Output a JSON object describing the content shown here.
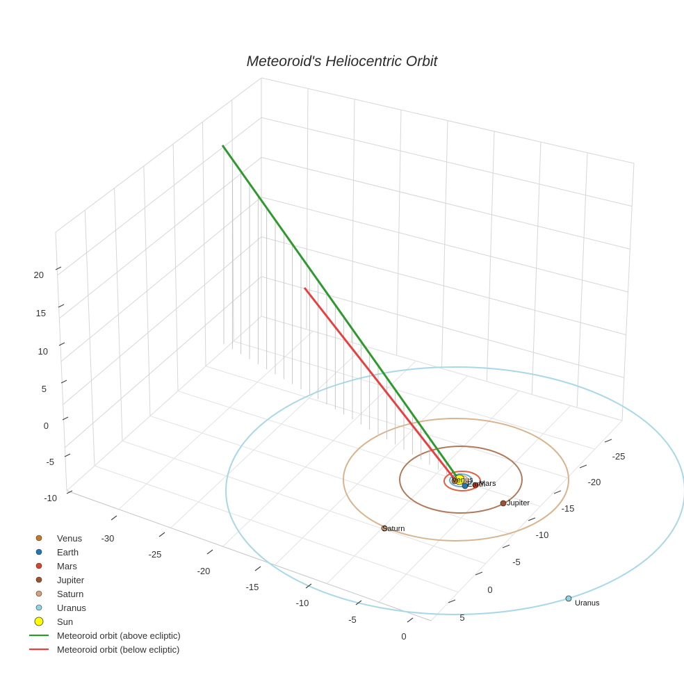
{
  "chart_data": {
    "type": "scatter3d",
    "title": "Meteoroid's Heliocentric Orbit",
    "axes": {
      "x": {
        "ticks": [
          -30,
          -25,
          -20,
          -15,
          -10,
          -5,
          0
        ]
      },
      "y": {
        "ticks": [
          -25,
          -20,
          -15,
          -10,
          -5,
          0,
          5
        ]
      },
      "z": {
        "ticks": [
          -10,
          -5,
          0,
          5,
          10,
          15,
          20
        ]
      }
    },
    "planets": [
      {
        "name": "Venus",
        "color": "#c0782a",
        "label": "Venus"
      },
      {
        "name": "Earth",
        "color": "#1f77b4",
        "label": "Earth"
      },
      {
        "name": "Mars",
        "color": "#d6452a",
        "label": "Mars"
      },
      {
        "name": "Jupiter",
        "color": "#a0522d",
        "label": "Jupiter"
      },
      {
        "name": "Saturn",
        "color": "#d2a27a",
        "label": "Saturn"
      },
      {
        "name": "Uranus",
        "color": "#8fd3e4",
        "label": "Uranus"
      }
    ],
    "sun": {
      "name": "Sun",
      "color": "#ffff00"
    },
    "orbits_colors": {
      "Venus": "#e8a060",
      "Earth": "#6aaed6",
      "Mars": "#e06040",
      "Jupiter": "#b07a5a",
      "Saturn": "#d8b48e",
      "Uranus": "#a8d8e8"
    },
    "series": [
      {
        "name": "Meteoroid orbit (above ecliptic)",
        "color": "#2e9a2e"
      },
      {
        "name": "Meteoroid orbit (below ecliptic)",
        "color": "#e84040"
      }
    ],
    "legend": [
      {
        "label": "Venus",
        "kind": "marker",
        "color": "#c0782a"
      },
      {
        "label": "Earth",
        "kind": "marker",
        "color": "#1f77b4"
      },
      {
        "label": "Mars",
        "kind": "marker",
        "color": "#d6452a"
      },
      {
        "label": "Jupiter",
        "kind": "marker",
        "color": "#a0522d"
      },
      {
        "label": "Saturn",
        "kind": "marker",
        "color": "#d2a27a"
      },
      {
        "label": "Uranus",
        "kind": "marker",
        "color": "#8fd3e4"
      },
      {
        "label": "Sun",
        "kind": "sun",
        "color": "#ffff00"
      },
      {
        "label": "Meteoroid orbit (above ecliptic)",
        "kind": "line",
        "color": "#2e9a2e"
      },
      {
        "label": "Meteoroid orbit (below ecliptic)",
        "kind": "line",
        "color": "#e84040"
      }
    ]
  }
}
